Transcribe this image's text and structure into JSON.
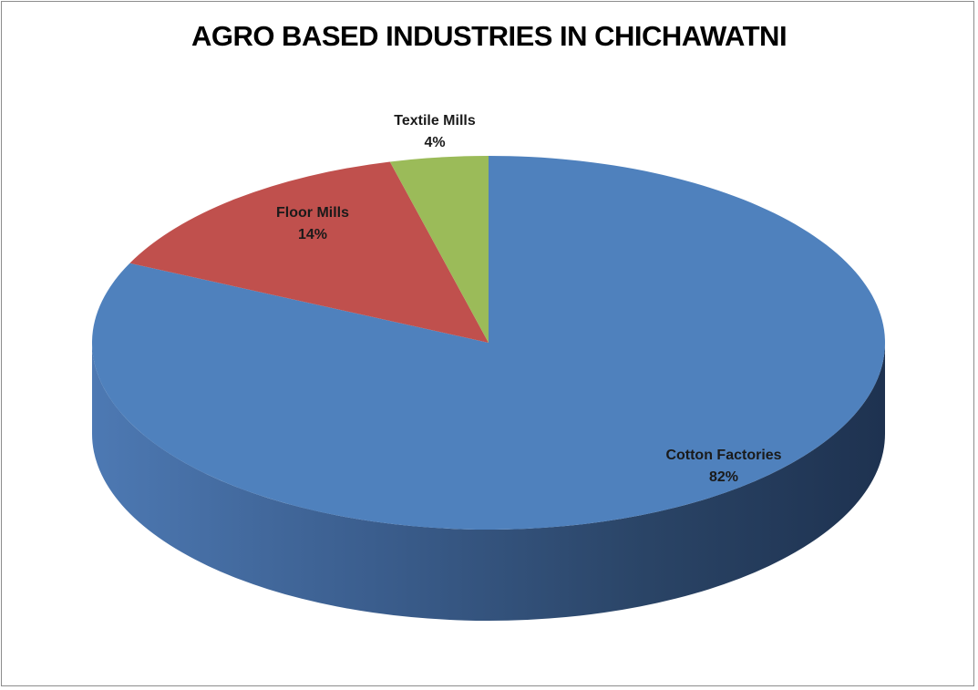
{
  "chart_data": {
    "type": "pie",
    "title": "AGRO BASED INDUSTRIES IN CHICHAWATNI",
    "categories": [
      "Cotton Factories",
      "Floor Mills",
      "Textile Mills"
    ],
    "values": [
      82,
      14,
      4
    ],
    "value_labels": [
      "82%",
      "14%",
      "4%"
    ],
    "colors": [
      "#4f81bd",
      "#c0504d",
      "#9bbb59"
    ],
    "style": "3d",
    "legend": "none",
    "data_labels": "category name and percentage"
  }
}
